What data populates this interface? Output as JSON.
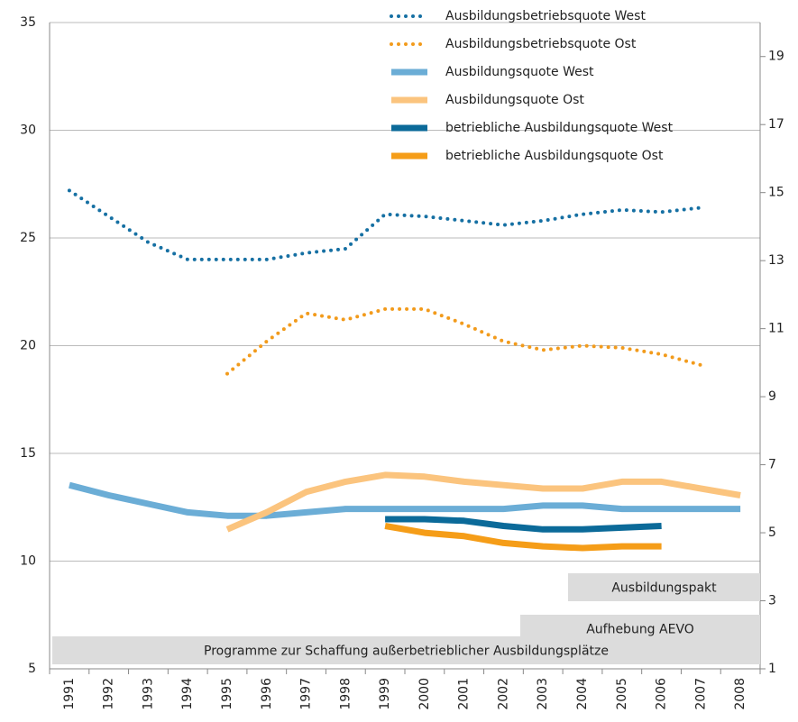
{
  "chart_data": {
    "type": "line",
    "categories": [
      "1991",
      "1992",
      "1993",
      "1994",
      "1995",
      "1996",
      "1997",
      "1998",
      "1999",
      "2000",
      "2001",
      "2002",
      "2003",
      "2004",
      "2005",
      "2006",
      "2007",
      "2008"
    ],
    "ylim": [
      5,
      35
    ],
    "yticks": [
      5,
      10,
      15,
      20,
      25,
      30,
      35
    ],
    "y2lim": [
      1,
      20
    ],
    "y2ticks": [
      1,
      3,
      5,
      7,
      9,
      11,
      13,
      15,
      17,
      19
    ],
    "grid": true,
    "series": [
      {
        "name": "Ausbildungsbetriebsquote West",
        "color": "#1670a3",
        "style": "dotted",
        "values": [
          27.2,
          26.0,
          24.8,
          24.0,
          24.0,
          24.0,
          24.3,
          24.5,
          26.1,
          26.0,
          25.8,
          25.6,
          25.8,
          26.1,
          26.3,
          26.2,
          26.4,
          null
        ]
      },
      {
        "name": "Ausbildungsbetriebsquote Ost",
        "color": "#f29b1c",
        "style": "dotted",
        "values": [
          null,
          null,
          null,
          null,
          18.7,
          20.2,
          21.5,
          21.2,
          21.7,
          21.7,
          21.0,
          20.2,
          19.8,
          20.0,
          19.9,
          19.6,
          19.1,
          null
        ]
      },
      {
        "name": "Ausbildungsquote West",
        "color": "#6badd6",
        "style": "thick",
        "axis": "y2",
        "values": [
          6.4,
          6.1,
          5.85,
          5.6,
          5.5,
          5.5,
          5.6,
          5.7,
          5.7,
          5.7,
          5.7,
          5.7,
          5.8,
          5.8,
          5.7,
          5.7,
          5.7,
          5.7
        ]
      },
      {
        "name": "Ausbildungsquote Ost",
        "color": "#fbc47e",
        "style": "thick",
        "axis": "y2",
        "values": [
          null,
          null,
          null,
          null,
          5.1,
          5.6,
          6.2,
          6.5,
          6.7,
          6.65,
          6.5,
          6.4,
          6.3,
          6.3,
          6.5,
          6.5,
          6.3,
          6.1
        ]
      },
      {
        "name": "betriebliche Ausbildungsquote West",
        "color": "#0b6a99",
        "style": "thick",
        "axis": "y2",
        "values": [
          null,
          null,
          null,
          null,
          null,
          null,
          null,
          null,
          5.4,
          5.4,
          5.35,
          5.2,
          5.1,
          5.1,
          5.15,
          5.2,
          null,
          null
        ]
      },
      {
        "name": "betriebliche Ausbildungsquote Ost",
        "color": "#f59d18",
        "style": "thick",
        "axis": "y2",
        "values": [
          null,
          null,
          null,
          null,
          null,
          null,
          null,
          null,
          5.2,
          5.0,
          4.9,
          4.7,
          4.6,
          4.55,
          4.6,
          4.6,
          null,
          null
        ]
      }
    ],
    "annotations": [
      "Ausbildungspakt",
      "Aufhebung AEVO",
      "Programme zur Schaffung außerbetrieblicher Ausbildungsplätze"
    ]
  }
}
